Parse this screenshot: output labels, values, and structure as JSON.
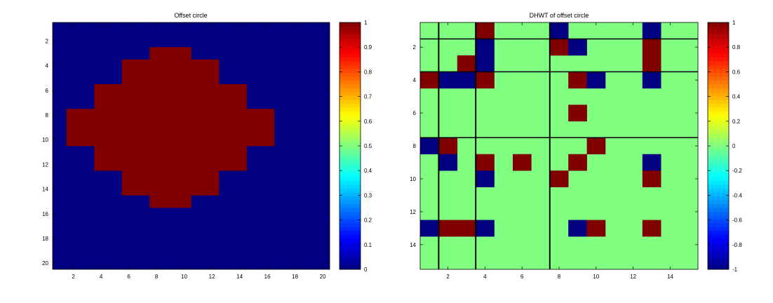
{
  "chart_data": [
    {
      "type": "heatmap",
      "title": "Offset circle",
      "xlabel": "",
      "ylabel": "",
      "rows": 20,
      "cols": 20,
      "xlim": [
        0.5,
        20.5
      ],
      "ylim": [
        0.5,
        20.5
      ],
      "y_reversed": true,
      "x_ticks": [
        2,
        4,
        6,
        8,
        10,
        12,
        14,
        16,
        18,
        20
      ],
      "y_ticks": [
        2,
        4,
        6,
        8,
        10,
        12,
        14,
        16,
        18,
        20
      ],
      "clim": [
        0,
        1
      ],
      "colormap": "jet",
      "background_value": 0,
      "fill_value": 1,
      "filled_row_spans": [
        {
          "row": 3,
          "cols": [
            6,
            8
          ]
        },
        {
          "row": 4,
          "cols": [
            4,
            10
          ]
        },
        {
          "row": 5,
          "cols": [
            4,
            10
          ]
        },
        {
          "row": 6,
          "cols": [
            2,
            12
          ]
        },
        {
          "row": 7,
          "cols": [
            2,
            12
          ]
        },
        {
          "row": 8,
          "cols": [
            0,
            14
          ]
        },
        {
          "row": 9,
          "cols": [
            0,
            14
          ]
        },
        {
          "row": 10,
          "cols": [
            0,
            14
          ]
        },
        {
          "row": 11,
          "cols": [
            2,
            12
          ]
        },
        {
          "row": 12,
          "cols": [
            2,
            12
          ]
        },
        {
          "row": 13,
          "cols": [
            4,
            10
          ]
        },
        {
          "row": 14,
          "cols": [
            4,
            10
          ]
        },
        {
          "row": 15,
          "cols": [
            6,
            8
          ]
        }
      ],
      "span_col_offset": 2,
      "colorbar": {
        "ticks": [
          0,
          0.1,
          0.2,
          0.3,
          0.4,
          0.5,
          0.6,
          0.7,
          0.8,
          0.9,
          1
        ],
        "tick_labels": [
          "0",
          "0.1",
          "0.2",
          "0.3",
          "0.4",
          "0.5",
          "0.6",
          "0.7",
          "0.8",
          "0.9",
          "1"
        ]
      },
      "grid": false,
      "legend": "none"
    },
    {
      "type": "heatmap",
      "title": "DHWT of offset circle",
      "xlabel": "",
      "ylabel": "",
      "rows": 15,
      "cols": 15,
      "xlim": [
        0.5,
        15.5
      ],
      "ylim": [
        0.5,
        15.5
      ],
      "y_reversed": true,
      "x_ticks": [
        2,
        4,
        6,
        8,
        10,
        12,
        14
      ],
      "y_ticks": [
        2,
        4,
        6,
        8,
        10,
        12,
        14
      ],
      "clim": [
        -1,
        1
      ],
      "colormap": "jet",
      "background_value": 0,
      "cells": [
        {
          "row": 1,
          "col": 4,
          "value": 1
        },
        {
          "row": 1,
          "col": 8,
          "value": -1
        },
        {
          "row": 1,
          "col": 13,
          "value": -1
        },
        {
          "row": 2,
          "col": 4,
          "value": -1
        },
        {
          "row": 2,
          "col": 8,
          "value": 1
        },
        {
          "row": 2,
          "col": 9,
          "value": -1
        },
        {
          "row": 2,
          "col": 13,
          "value": 1
        },
        {
          "row": 3,
          "col": 3,
          "value": 1
        },
        {
          "row": 3,
          "col": 4,
          "value": -1
        },
        {
          "row": 3,
          "col": 13,
          "value": 1
        },
        {
          "row": 4,
          "col": 1,
          "value": 1
        },
        {
          "row": 4,
          "col": 2,
          "value": -1
        },
        {
          "row": 4,
          "col": 3,
          "value": -1
        },
        {
          "row": 4,
          "col": 4,
          "value": 1
        },
        {
          "row": 4,
          "col": 9,
          "value": 1
        },
        {
          "row": 4,
          "col": 10,
          "value": -1
        },
        {
          "row": 4,
          "col": 13,
          "value": -1
        },
        {
          "row": 6,
          "col": 9,
          "value": 1
        },
        {
          "row": 8,
          "col": 1,
          "value": -1
        },
        {
          "row": 8,
          "col": 2,
          "value": 1
        },
        {
          "row": 8,
          "col": 10,
          "value": 1
        },
        {
          "row": 9,
          "col": 2,
          "value": -1
        },
        {
          "row": 9,
          "col": 4,
          "value": 1
        },
        {
          "row": 9,
          "col": 6,
          "value": 1
        },
        {
          "row": 9,
          "col": 9,
          "value": 1
        },
        {
          "row": 9,
          "col": 13,
          "value": -1
        },
        {
          "row": 10,
          "col": 4,
          "value": -1
        },
        {
          "row": 10,
          "col": 8,
          "value": 1
        },
        {
          "row": 10,
          "col": 13,
          "value": 1
        },
        {
          "row": 13,
          "col": 1,
          "value": -1
        },
        {
          "row": 13,
          "col": 2,
          "value": 1
        },
        {
          "row": 13,
          "col": 3,
          "value": 1
        },
        {
          "row": 13,
          "col": 4,
          "value": -1
        },
        {
          "row": 13,
          "col": 9,
          "value": -1
        },
        {
          "row": 13,
          "col": 10,
          "value": 1
        },
        {
          "row": 13,
          "col": 13,
          "value": 1
        }
      ],
      "vertical_lines_x": [
        1.5,
        3.5,
        7.5
      ],
      "horizontal_lines_y": [
        1.5,
        3.5,
        7.5
      ],
      "colorbar": {
        "ticks": [
          -1,
          -0.8,
          -0.6,
          -0.4,
          -0.2,
          0,
          0.2,
          0.4,
          0.6,
          0.8,
          1
        ],
        "tick_labels": [
          "-1",
          "-0.8",
          "-0.6",
          "-0.4",
          "-0.2",
          "0",
          "0.2",
          "0.4",
          "0.6",
          "0.8",
          "1"
        ]
      },
      "grid": false,
      "legend": "none"
    }
  ]
}
